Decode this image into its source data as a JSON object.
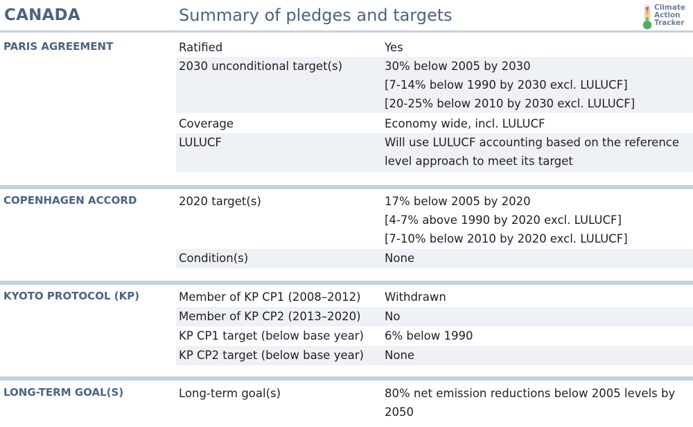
{
  "header": {
    "country": "CANADA",
    "subtitle": "Summary of pledges and targets",
    "logo": {
      "line1": "Climate",
      "line2": "Action",
      "line3": "Tracker",
      "icon": "thermometer-icon"
    }
  },
  "colors": {
    "title": "#4b6383",
    "rule": "#c5d0e0",
    "row_shade": "#eef1f6"
  },
  "sections": [
    {
      "title": "PARIS AGREEMENT",
      "rows": [
        {
          "label": "Ratified",
          "values": [
            "Yes"
          ]
        },
        {
          "label": "2030 unconditional target(s)",
          "values": [
            "30% below 2005 by 2030",
            "[7-14% below 1990 by 2030 excl. LULUCF]",
            "[20-25% below 2010 by 2030 excl. LULUCF]"
          ]
        },
        {
          "label": "Coverage",
          "values": [
            "Economy wide, incl. LULUCF"
          ]
        },
        {
          "label": "LULUCF",
          "values": [
            "Will use LULUCF accounting based on the reference",
            "level approach to meet its target"
          ]
        }
      ]
    },
    {
      "title": "COPENHAGEN ACCORD",
      "rows": [
        {
          "label": "2020 target(s)",
          "values": [
            "17% below 2005 by 2020",
            "[4-7% above 1990 by 2020 excl. LULUCF]",
            "[7-10% below 2010 by 2020 excl. LULUCF]"
          ]
        },
        {
          "label": "Condition(s)",
          "values": [
            "None"
          ]
        }
      ]
    },
    {
      "title": "KYOTO PROTOCOL (KP)",
      "rows": [
        {
          "label": "Member of KP CP1 (2008–2012)",
          "values": [
            "Withdrawn"
          ]
        },
        {
          "label": "Member of KP CP2 (2013–2020)",
          "values": [
            "No"
          ]
        },
        {
          "label": "KP CP1 target (below base year)",
          "values": [
            "6% below 1990"
          ]
        },
        {
          "label": "KP CP2 target (below base year)",
          "values": [
            "None"
          ]
        }
      ]
    },
    {
      "title": "LONG-TERM GOAL(S)",
      "rows": [
        {
          "label": "Long-term goal(s)",
          "values": [
            "80% net emission reductions below 2005 levels by",
            "2050"
          ]
        }
      ]
    }
  ]
}
